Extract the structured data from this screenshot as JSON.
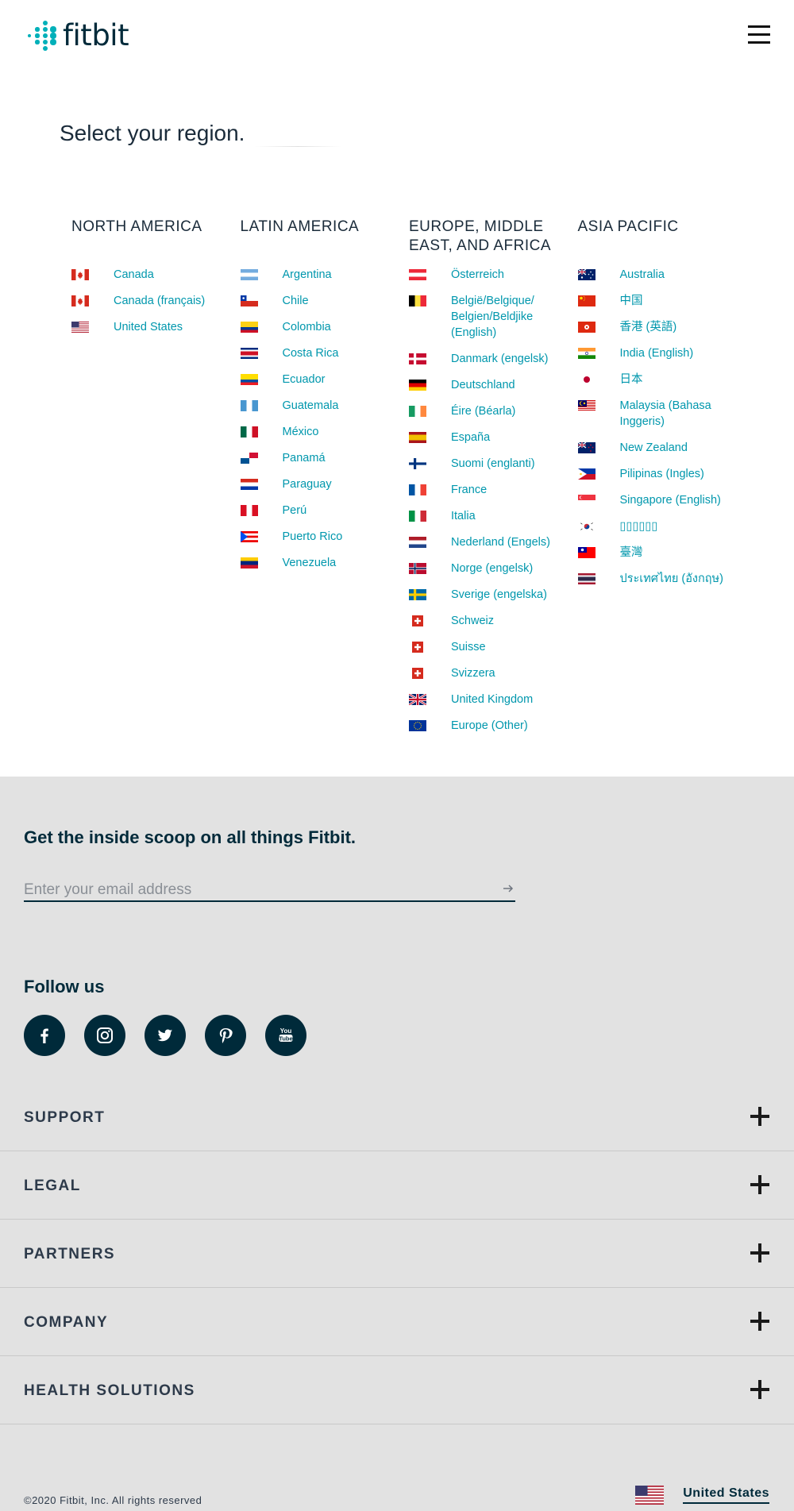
{
  "header": {
    "logo_text": "fitbit",
    "brand_color": "#00B0B9",
    "menu_icon": "hamburger-icon"
  },
  "region": {
    "title": "Select your region.",
    "link_color": "#0097AD",
    "columns": [
      {
        "id": "north-america",
        "heading": "NORTH AMERICA",
        "countries": [
          {
            "label": "Canada",
            "flag": "ca"
          },
          {
            "label": "Canada (français)",
            "flag": "ca"
          },
          {
            "label": "United States",
            "flag": "us"
          }
        ]
      },
      {
        "id": "latin-america",
        "heading": "LATIN AMERICA",
        "countries": [
          {
            "label": "Argentina",
            "flag": "ar"
          },
          {
            "label": "Chile",
            "flag": "cl"
          },
          {
            "label": "Colombia",
            "flag": "co"
          },
          {
            "label": "Costa Rica",
            "flag": "cr"
          },
          {
            "label": "Ecuador",
            "flag": "ec"
          },
          {
            "label": "Guatemala",
            "flag": "gt"
          },
          {
            "label": "México",
            "flag": "mx"
          },
          {
            "label": "Panamá",
            "flag": "pa"
          },
          {
            "label": "Paraguay",
            "flag": "py"
          },
          {
            "label": "Perú",
            "flag": "pe"
          },
          {
            "label": "Puerto Rico",
            "flag": "pr"
          },
          {
            "label": "Venezuela",
            "flag": "ve"
          }
        ]
      },
      {
        "id": "emea",
        "heading": "EUROPE, MIDDLE EAST, AND AFRICA",
        "countries": [
          {
            "label": "Österreich",
            "flag": "at"
          },
          {
            "label": "België/Belgique/ Belgien/Beldjike (English)",
            "flag": "be"
          },
          {
            "label": "Danmark (engelsk)",
            "flag": "dk"
          },
          {
            "label": "Deutschland",
            "flag": "de"
          },
          {
            "label": "Éire (Béarla)",
            "flag": "ie"
          },
          {
            "label": "España",
            "flag": "es"
          },
          {
            "label": "Suomi (englanti)",
            "flag": "fi"
          },
          {
            "label": "France",
            "flag": "fr"
          },
          {
            "label": "Italia",
            "flag": "it"
          },
          {
            "label": "Nederland (Engels)",
            "flag": "nl"
          },
          {
            "label": "Norge (engelsk)",
            "flag": "no"
          },
          {
            "label": "Sverige (engelska)",
            "flag": "se"
          },
          {
            "label": "Schweiz",
            "flag": "ch"
          },
          {
            "label": "Suisse",
            "flag": "ch"
          },
          {
            "label": "Svizzera",
            "flag": "ch"
          },
          {
            "label": "United Kingdom",
            "flag": "gb"
          },
          {
            "label": "Europe (Other)",
            "flag": "eu"
          }
        ]
      },
      {
        "id": "asia-pacific",
        "heading": "ASIA PACIFIC",
        "countries": [
          {
            "label": "Australia",
            "flag": "au"
          },
          {
            "label": "中国",
            "flag": "cn"
          },
          {
            "label": "香港 (英語)",
            "flag": "hk"
          },
          {
            "label": "India (English)",
            "flag": "in"
          },
          {
            "label": "日本",
            "flag": "jp"
          },
          {
            "label": "Malaysia (Bahasa Inggeris)",
            "flag": "my"
          },
          {
            "label": "New Zealand",
            "flag": "nz"
          },
          {
            "label": "Pilipinas (Ingles)",
            "flag": "ph"
          },
          {
            "label": "Singapore (English)",
            "flag": "sg"
          },
          {
            "label": "▯▯▯▯▯▯",
            "flag": "kr"
          },
          {
            "label": "臺灣",
            "flag": "tw"
          },
          {
            "label": "ประเทศไทย (อังกฤษ)",
            "flag": "th"
          }
        ]
      }
    ]
  },
  "footer": {
    "background": "#e2e2e2",
    "newsletter_title": "Get the inside scoop on all things Fitbit.",
    "email_placeholder": "Enter your email address",
    "submit_icon": "arrow-right-icon",
    "follow_title": "Follow us",
    "socials": [
      {
        "id": "facebook",
        "icon": "facebook-icon"
      },
      {
        "id": "instagram",
        "icon": "instagram-icon"
      },
      {
        "id": "twitter",
        "icon": "twitter-icon"
      },
      {
        "id": "pinterest",
        "icon": "pinterest-icon"
      },
      {
        "id": "youtube",
        "icon": "youtube-icon"
      }
    ],
    "sections": [
      {
        "id": "support",
        "label": "SUPPORT"
      },
      {
        "id": "legal",
        "label": "LEGAL"
      },
      {
        "id": "partners",
        "label": "PARTNERS"
      },
      {
        "id": "company",
        "label": "COMPANY"
      },
      {
        "id": "health-solutions",
        "label": "HEALTH SOLUTIONS"
      }
    ],
    "copyright": "©2020 Fitbit, Inc. All rights reserved",
    "locale": {
      "label": "United States",
      "flag": "us"
    }
  }
}
